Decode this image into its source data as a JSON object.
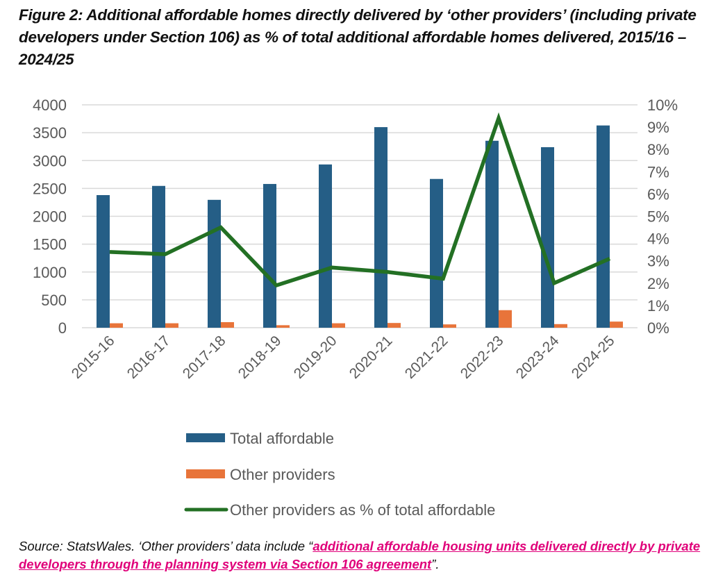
{
  "figure": {
    "title": "Figure 2: Additional affordable homes directly delivered by ‘other providers’ (including private developers under Section 106) as % of total additional affordable homes delivered, 2015/16 – 2024/25"
  },
  "source": {
    "prefix": "Source: StatsWales. ‘Other providers’ data include “",
    "link_text": "additional affordable housing units delivered directly by private developers through the planning system via Section 106 agreement",
    "suffix": "”."
  },
  "chart_data": {
    "type": "bar",
    "title": "Figure 2: Additional affordable homes directly delivered by ‘other providers’ as % of total",
    "categories": [
      "2015-16",
      "2016-17",
      "2017-18",
      "2018-19",
      "2019-20",
      "2020-21",
      "2021-22",
      "2022-23",
      "2023-24",
      "2024-25"
    ],
    "series": [
      {
        "name": "Total affordable",
        "type": "bar",
        "axis": "left",
        "color": "#255e86",
        "values": [
          2380,
          2545,
          2295,
          2580,
          2930,
          3600,
          2670,
          3355,
          3240,
          3630
        ]
      },
      {
        "name": "Other providers",
        "type": "bar",
        "axis": "left",
        "color": "#e8743a",
        "values": [
          80,
          80,
          100,
          45,
          80,
          85,
          60,
          315,
          65,
          110
        ]
      },
      {
        "name": "Other providers as % of total affordable",
        "type": "line",
        "axis": "right",
        "color": "#237024",
        "values": [
          3.4,
          3.3,
          4.5,
          1.9,
          2.7,
          2.5,
          2.2,
          9.4,
          2.0,
          3.1
        ]
      }
    ],
    "y_left": {
      "label": "",
      "range": [
        0,
        4000
      ],
      "ticks": [
        "0",
        "500",
        "1000",
        "1500",
        "2000",
        "2500",
        "3000",
        "3500",
        "4000"
      ]
    },
    "y_right": {
      "label": "",
      "range": [
        0,
        10
      ],
      "ticks": [
        "0%",
        "1%",
        "2%",
        "3%",
        "4%",
        "5%",
        "6%",
        "7%",
        "8%",
        "9%",
        "10%"
      ]
    },
    "xlabel": "",
    "grid": true,
    "legend_position": "bottom"
  }
}
